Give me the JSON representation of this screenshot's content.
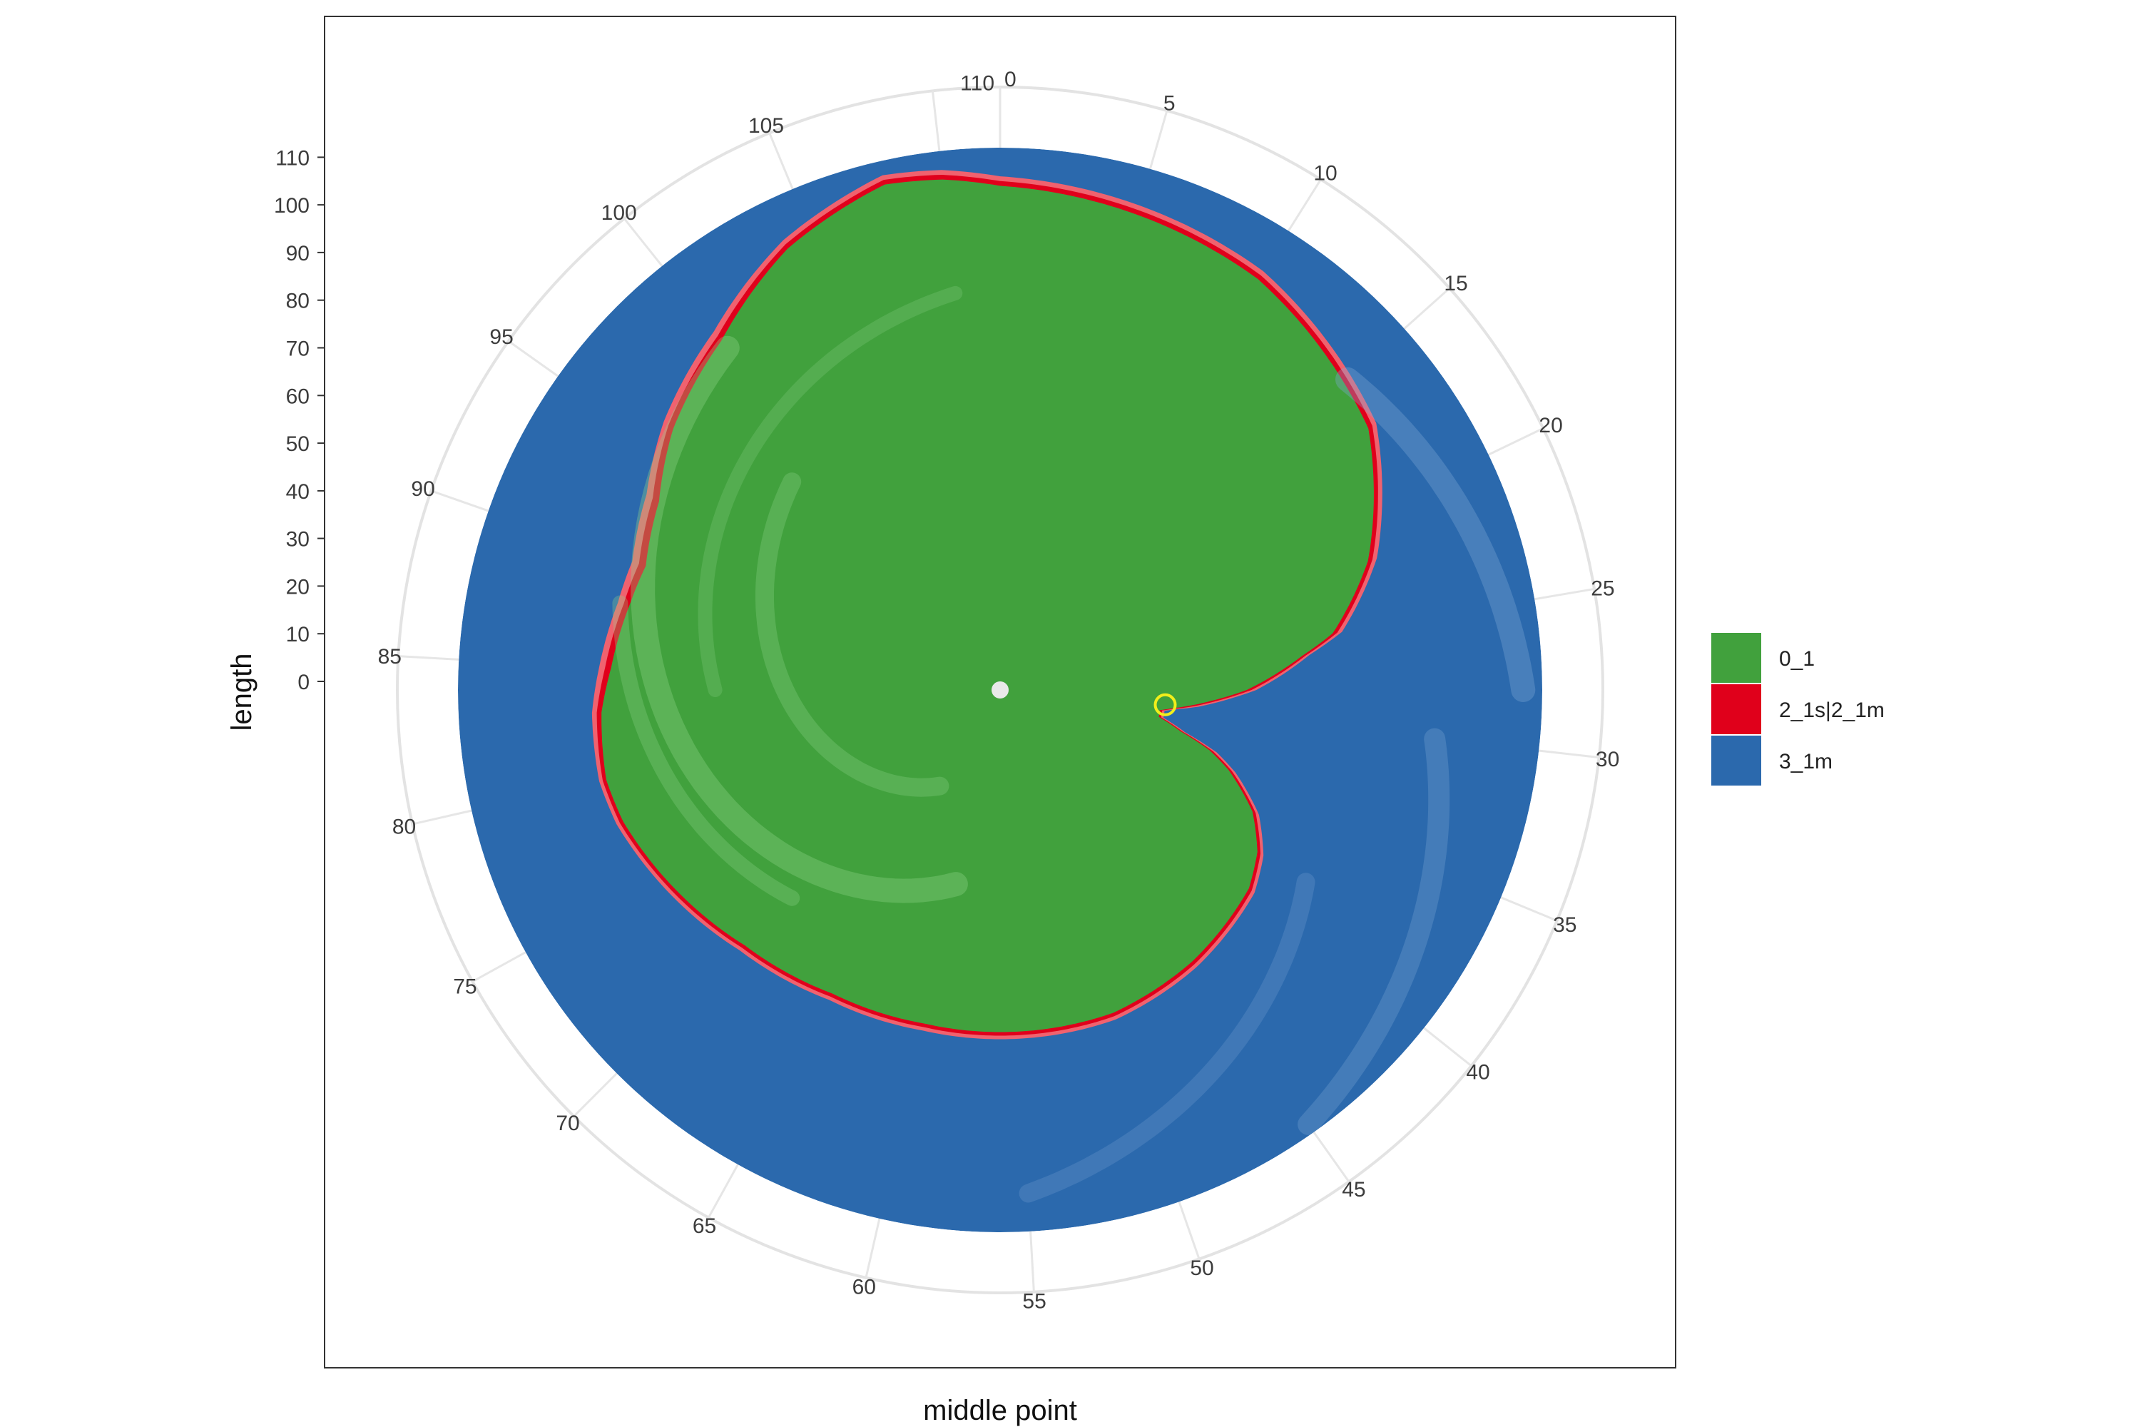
{
  "chart_data": {
    "type": "polar-area",
    "xlabel": "middle point",
    "ylabel": "length",
    "theta_range": [
      0,
      112
    ],
    "theta_ticks": [
      0,
      5,
      10,
      15,
      20,
      25,
      30,
      35,
      40,
      45,
      50,
      55,
      60,
      65,
      70,
      75,
      80,
      85,
      90,
      95,
      100,
      105,
      110
    ],
    "r_range": [
      0,
      112
    ],
    "r_ticks": [
      0,
      10,
      20,
      30,
      40,
      50,
      60,
      70,
      80,
      90,
      100,
      110
    ],
    "grid": true,
    "legend_position": "right",
    "legend": [
      {
        "label": "0_1",
        "color": "#41a13d"
      },
      {
        "label": "2_1s|2_1m",
        "color": "#e0001b"
      },
      {
        "label": "3_1m",
        "color": "#2b69ad"
      }
    ],
    "boundary": {
      "theta": [
        0,
        10,
        17,
        22,
        25,
        26,
        28,
        29.5,
        30.2,
        31,
        32,
        33,
        34,
        35,
        36,
        38,
        40,
        45,
        50,
        55,
        60,
        65,
        70,
        75,
        78,
        80,
        83,
        85,
        88,
        90,
        93,
        96,
        100,
        104,
        108,
        110,
        112
      ],
      "inner_length": [
        104,
        100,
        93,
        80,
        69,
        62,
        50,
        38,
        32,
        32,
        37,
        44,
        49,
        53,
        57,
        62,
        65,
        68,
        70,
        70,
        70,
        71,
        74,
        79,
        82,
        83,
        82,
        80,
        78,
        77,
        80,
        86,
        92,
        101,
        107,
        106,
        104
      ],
      "red_length": [
        106,
        102,
        95,
        82,
        71,
        63.5,
        52,
        40,
        33,
        33,
        38,
        45.5,
        50.5,
        54.5,
        58.5,
        63.5,
        66.5,
        69.5,
        71.5,
        71.5,
        71.5,
        72.5,
        75.5,
        80.5,
        83.5,
        84.5,
        84,
        82.5,
        80.5,
        80,
        83,
        88.5,
        94.5,
        103,
        109,
        108,
        106
      ]
    },
    "outer_length": 112,
    "highlight_point": {
      "theta": 29.6,
      "length": 33
    }
  }
}
